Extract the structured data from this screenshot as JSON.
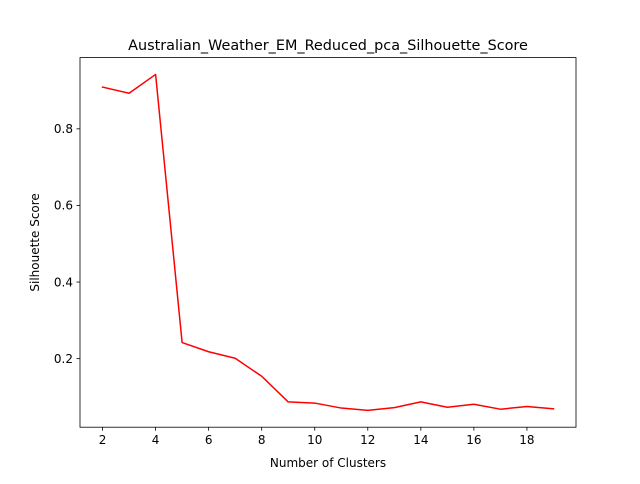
{
  "chart_data": {
    "type": "line",
    "title": "Australian_Weather_EM_Reduced_pca_Silhouette_Score",
    "xlabel": "Number of Clusters",
    "ylabel": "Silhouette Score",
    "x": [
      2,
      3,
      4,
      5,
      6,
      7,
      8,
      9,
      10,
      11,
      12,
      13,
      14,
      15,
      16,
      17,
      18,
      19
    ],
    "series": [
      {
        "color": "#ff0000",
        "values": [
          0.909,
          0.893,
          0.942,
          0.242,
          0.218,
          0.201,
          0.154,
          0.087,
          0.084,
          0.071,
          0.065,
          0.072,
          0.087,
          0.073,
          0.081,
          0.068,
          0.075,
          0.069
        ]
      }
    ],
    "xlim": [
      1.15,
      19.85
    ],
    "ylim": [
      0.021,
      0.986
    ],
    "xticks": [
      "2",
      "4",
      "6",
      "8",
      "10",
      "12",
      "14",
      "16",
      "18"
    ],
    "yticks": [
      "0.2",
      "0.4",
      "0.6",
      "0.8"
    ],
    "grid": false
  }
}
